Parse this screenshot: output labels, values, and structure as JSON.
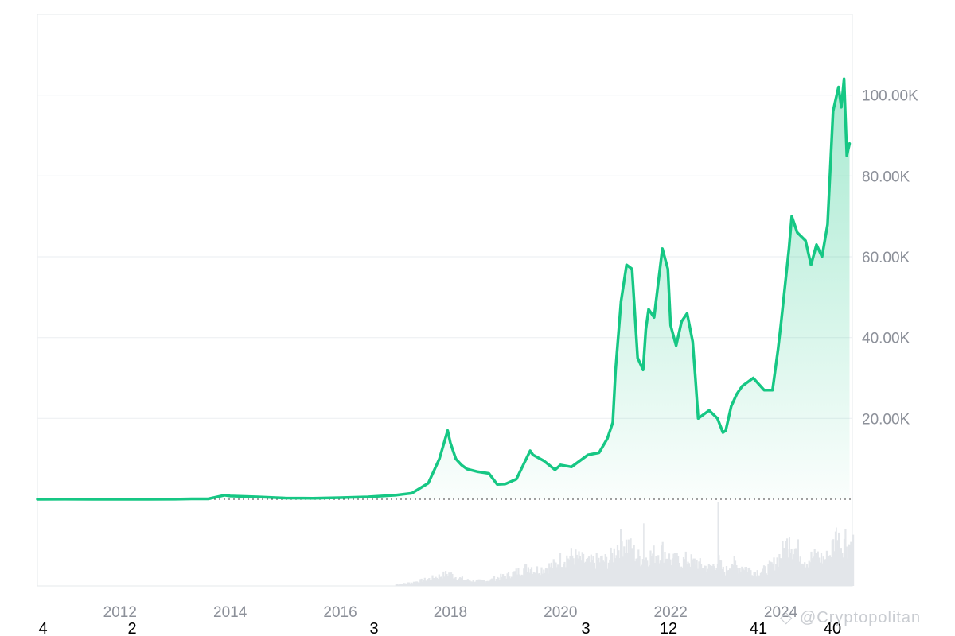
{
  "chart_data": {
    "type": "area",
    "title": "",
    "xlabel": "",
    "ylabel": "",
    "x_ticks": [
      "2012",
      "2014",
      "2016",
      "2018",
      "2020",
      "2022",
      "2024"
    ],
    "y_ticks": [
      "20.00K",
      "40.00K",
      "60.00K",
      "80.00K",
      "100.00K"
    ],
    "ylim": [
      0,
      120000
    ],
    "xlim": [
      2010.5,
      2025.3
    ],
    "grid": true,
    "legend": "none",
    "colors": {
      "line": "#16c784",
      "fill": "#16c784",
      "volume": "#e3e6ea",
      "grid": "#eef0f3",
      "baseline": "#666666"
    },
    "series": [
      {
        "x": [
          2010.5,
          2011.0,
          2011.5,
          2012.0,
          2012.5,
          2013.0,
          2013.3,
          2013.6,
          2013.9,
          2014.0,
          2014.5,
          2015.0,
          2015.5,
          2016.0,
          2016.5,
          2017.0,
          2017.3,
          2017.6,
          2017.8,
          2017.95,
          2018.0,
          2018.1,
          2018.2,
          2018.3,
          2018.5,
          2018.7,
          2018.85,
          2019.0,
          2019.2,
          2019.45,
          2019.5,
          2019.7,
          2019.9,
          2020.0,
          2020.2,
          2020.5,
          2020.7,
          2020.85,
          2020.95,
          2021.0,
          2021.1,
          2021.2,
          2021.3,
          2021.4,
          2021.5,
          2021.55,
          2021.6,
          2021.7,
          2021.85,
          2021.95,
          2022.0,
          2022.1,
          2022.2,
          2022.3,
          2022.4,
          2022.45,
          2022.5,
          2022.7,
          2022.85,
          2022.95,
          2023.0,
          2023.1,
          2023.2,
          2023.3,
          2023.5,
          2023.7,
          2023.85,
          2023.95,
          2024.0,
          2024.15,
          2024.2,
          2024.3,
          2024.45,
          2024.55,
          2024.65,
          2024.75,
          2024.85,
          2024.95,
          2025.0,
          2025.05,
          2025.1,
          2025.15,
          2025.2,
          2025.25
        ],
        "values": [
          0,
          10,
          5,
          5,
          8,
          13,
          100,
          100,
          1000,
          800,
          600,
          300,
          250,
          400,
          600,
          1000,
          1500,
          4000,
          10000,
          17000,
          14000,
          10000,
          8500,
          7500,
          6800,
          6400,
          3700,
          3800,
          5000,
          12000,
          11000,
          9500,
          7300,
          8500,
          8000,
          11000,
          11500,
          15000,
          19000,
          32000,
          49000,
          58000,
          57000,
          35000,
          32000,
          42000,
          47000,
          45000,
          62000,
          57000,
          43000,
          38000,
          44000,
          46000,
          39000,
          30000,
          20000,
          22000,
          20000,
          16500,
          17000,
          23000,
          26000,
          28000,
          30000,
          27000,
          27000,
          37000,
          43000,
          62000,
          70000,
          66000,
          64000,
          58000,
          63000,
          60000,
          68000,
          96000,
          99000,
          102000,
          97000,
          104000,
          85000,
          88000
        ]
      }
    ],
    "volume_values": [
      0,
      0,
      0,
      0,
      0,
      0,
      0,
      0,
      0,
      0,
      0,
      0,
      0,
      0,
      0,
      0.02,
      0.05,
      0.1,
      0.14,
      0.18,
      0.16,
      0.12,
      0.1,
      0.08,
      0.07,
      0.08,
      0.12,
      0.14,
      0.2,
      0.28,
      0.22,
      0.25,
      0.3,
      0.38,
      0.42,
      0.32,
      0.36,
      0.35,
      0.45,
      0.55,
      0.62,
      0.58,
      0.48,
      0.4,
      0.38,
      0.4,
      0.42,
      0.45,
      0.5,
      0.4,
      0.36,
      0.35,
      0.34,
      0.38,
      0.32,
      0.36,
      0.3,
      0.25,
      0.35,
      0.2,
      0.22,
      0.35,
      0.25,
      0.28,
      0.2,
      0.22,
      0.3,
      0.4,
      0.45,
      0.65,
      0.55,
      0.5,
      0.35,
      0.4,
      0.42,
      0.38,
      0.4,
      0.6,
      0.7,
      0.62,
      0.55,
      0.72,
      0.58,
      0.6
    ],
    "volume_spikes": [
      {
        "x": 2021.5,
        "v": 0.75
      },
      {
        "x": 2022.85,
        "v": 1.0
      },
      {
        "x": 2024.15,
        "v": 0.58
      },
      {
        "x": 2025.0,
        "v": 0.7
      }
    ]
  },
  "bottom_numbers": [
    "4",
    "2",
    "3",
    "3",
    "12",
    "41",
    "40"
  ],
  "watermark": "@Cryptopolitan"
}
